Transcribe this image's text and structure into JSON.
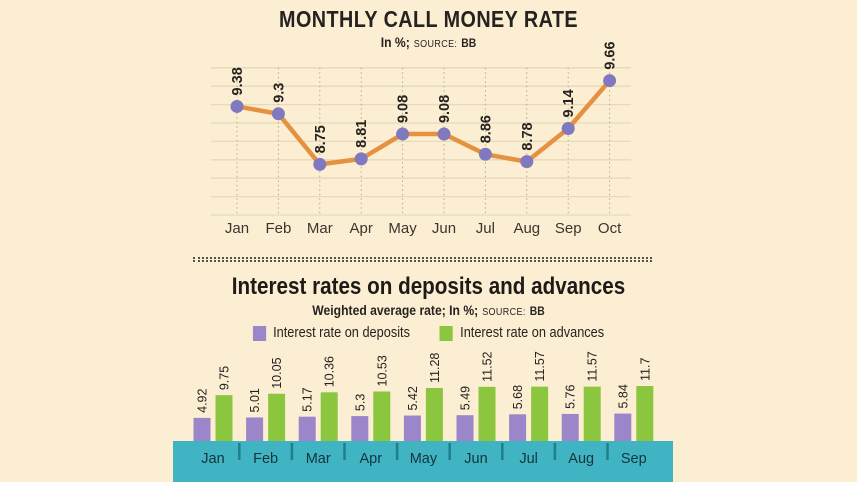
{
  "chart1": {
    "title": "MONTHLY CALL MONEY RATE",
    "subtitle_unit": "In %;",
    "source_label": "SOURCE:",
    "source_value": "BB"
  },
  "chart2": {
    "title": "Interest rates on deposits and advances",
    "subtitle": "Weighted average rate; In %;",
    "source_label": "SOURCE:",
    "source_value": "BB"
  },
  "chart_data": [
    {
      "type": "line",
      "title": "MONTHLY CALL MONEY RATE",
      "ylabel": "In %",
      "source": "BB",
      "categories": [
        "Jan",
        "Feb",
        "Mar",
        "Apr",
        "May",
        "Jun",
        "Jul",
        "Aug",
        "Sep",
        "Oct"
      ],
      "values": [
        9.38,
        9.3,
        8.75,
        8.81,
        9.08,
        9.08,
        8.86,
        8.78,
        9.14,
        9.66
      ],
      "ylim": [
        8.2,
        9.8
      ],
      "grid": true,
      "legend_position": "none",
      "colors": {
        "line": "#e59140",
        "point": "#8179bf",
        "hgrid": "#e6dabb",
        "vgrid": "#b9ab87",
        "text": "#262220"
      }
    },
    {
      "type": "bar",
      "title": "Interest rates on deposits and advances",
      "ylabel": "Weighted average rate; In %",
      "source": "BB",
      "categories": [
        "Jan",
        "Feb",
        "Mar",
        "Apr",
        "May",
        "Jun",
        "Jul",
        "Aug",
        "Sep"
      ],
      "series": [
        {
          "name": "Interest rate on deposits",
          "color": "#9a86c8",
          "values": [
            4.92,
            5.01,
            5.17,
            5.3,
            5.42,
            5.49,
            5.68,
            5.76,
            5.84
          ]
        },
        {
          "name": "Interest rate on advances",
          "color": "#8cc63f",
          "values": [
            9.75,
            10.05,
            10.36,
            10.53,
            11.28,
            11.52,
            11.57,
            11.57,
            11.7
          ]
        }
      ],
      "ylim": [
        0,
        12
      ],
      "grid": false,
      "legend_position": "top",
      "axis_band_color": "#41b4c4",
      "axis_tick_color": "#1f7f8e"
    }
  ]
}
